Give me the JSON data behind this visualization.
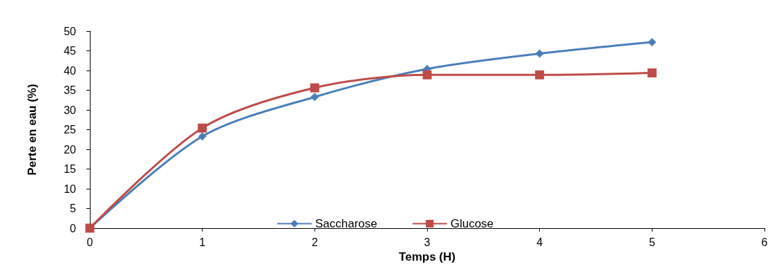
{
  "chart_data": {
    "type": "line",
    "xlabel": "Temps (H)",
    "ylabel": "Perte en eau (%)",
    "x": [
      0,
      1,
      2,
      3,
      4,
      5
    ],
    "series": [
      {
        "name": "Saccharose",
        "color": "#4a7ebb",
        "marker": "diamond",
        "values": [
          0,
          23.3,
          33.3,
          40.4,
          44.3,
          47.2
        ]
      },
      {
        "name": "Glucose",
        "color": "#be4b48",
        "marker": "square",
        "values": [
          0,
          25.4,
          35.6,
          38.9,
          38.9,
          39.4
        ]
      }
    ],
    "xlim": [
      0,
      6
    ],
    "xticks": [
      0,
      1,
      2,
      3,
      4,
      5,
      6
    ],
    "ylim": [
      0,
      50
    ],
    "yticks": [
      0,
      5,
      10,
      15,
      20,
      25,
      30,
      35,
      40,
      45,
      50
    ],
    "grid": false,
    "legend": "bottom"
  }
}
